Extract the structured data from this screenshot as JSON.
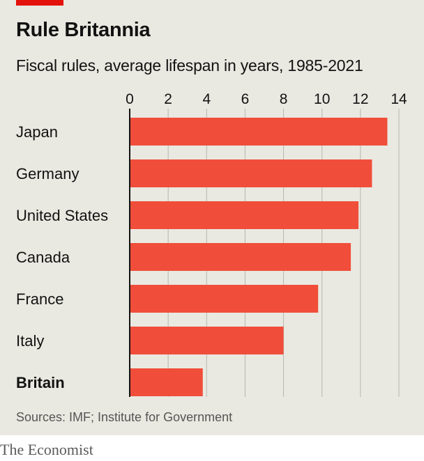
{
  "header": {
    "title": "Rule Britannia",
    "subtitle": "Fiscal rules, average lifespan in years, 1985-2021"
  },
  "footer": {
    "source": "Sources: IMF; Institute for Government",
    "brand": "The Economist"
  },
  "colors": {
    "bar": "#f04e3a",
    "accent": "#e3120b",
    "background": "#e9e9e1",
    "gridline": "#b7b7b0",
    "axis": "#121212"
  },
  "chart_data": {
    "type": "bar",
    "orientation": "horizontal",
    "title": "Rule Britannia",
    "subtitle": "Fiscal rules, average lifespan in years, 1985-2021",
    "xlim": [
      0,
      14
    ],
    "xticks": [
      0,
      2,
      4,
      6,
      8,
      10,
      12,
      14
    ],
    "tick_position": "top",
    "grid": true,
    "categories": [
      "Japan",
      "Germany",
      "United States",
      "Canada",
      "France",
      "Italy",
      "Britain"
    ],
    "values": [
      13.4,
      12.6,
      11.9,
      11.5,
      9.8,
      8.0,
      3.8
    ],
    "highlight": [
      "Britain"
    ]
  }
}
